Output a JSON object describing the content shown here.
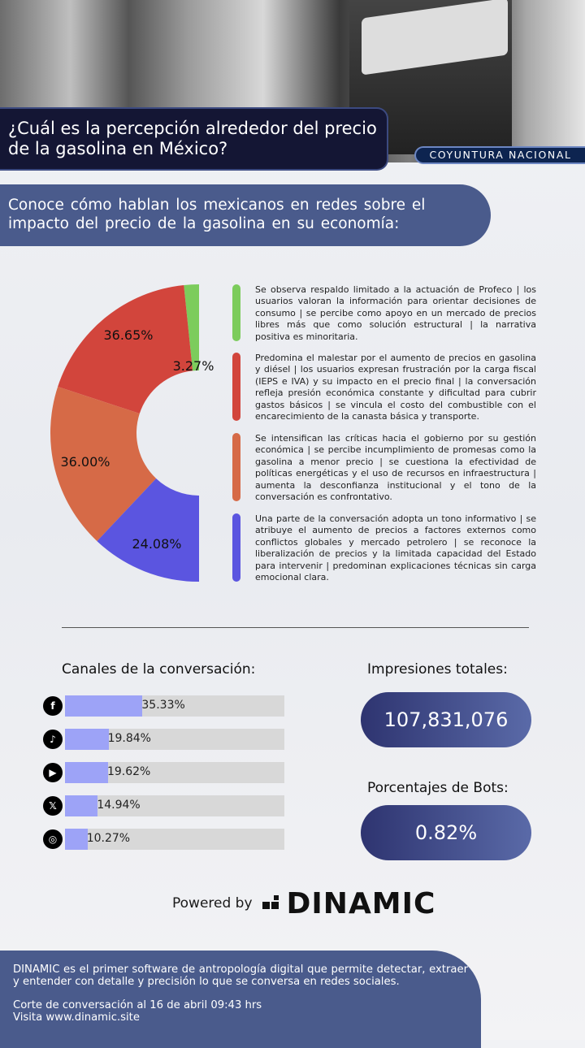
{
  "header": {
    "title": "¿Cuál es la percepción alrededor del precio de la gasolina en México?",
    "badge": "COYUNTURA NACIONAL",
    "subtitle": "Conoce cómo hablan los mexicanos en redes sobre el impacto del precio de la gasolina en su economía:"
  },
  "chart_data": {
    "type": "pie",
    "variant": "half-donut",
    "values": [
      3.27,
      36.65,
      36.0,
      24.08
    ],
    "labels": [
      "3.27%",
      "36.65%",
      "36.00%",
      "24.08%"
    ],
    "colors": [
      "#7ccc5c",
      "#d2453c",
      "#d66a47",
      "#5b55e0"
    ]
  },
  "narratives": [
    {
      "color": "#7ccc5c",
      "text": "Se observa respaldo limitado a la actuación de Profeco | los usuarios valoran la información para orientar decisiones de consumo | se percibe como apoyo en un mercado de precios libres más que como solución estructural | la narrativa positiva es minoritaria."
    },
    {
      "color": "#d2453c",
      "text": "Predomina el malestar por el aumento de precios en gasolina y diésel | los usuarios expresan frustración por la carga fiscal (IEPS e IVA) y su impacto en el precio final | la conversación refleja presión económica constante y dificultad para cubrir gastos básicos | se vincula el costo del combustible con el encarecimiento de la canasta básica y transporte."
    },
    {
      "color": "#d66a47",
      "text": "Se intensifican las críticas hacia el gobierno por su gestión económica | se percibe incumplimiento de promesas como la gasolina a menor precio | se cuestiona la efectividad de políticas energéticas y el uso de recursos en infraestructura | aumenta la desconfianza institucional y el tono de la conversación es confrontativo."
    },
    {
      "color": "#5b55e0",
      "text": "Una parte de la conversación adopta un tono informativo | se atribuye el aumento de precios a factores externos como conflictos globales y mercado petrolero | se reconoce la liberalización de precios y la limitada capacidad del Estado para intervenir | predominan explicaciones técnicas sin carga emocional clara."
    }
  ],
  "channels": {
    "title": "Canales de la conversación:",
    "items": [
      {
        "icon": "facebook-icon",
        "glyph": "f",
        "value": 35.33,
        "label": "35.33%"
      },
      {
        "icon": "tiktok-icon",
        "glyph": "♪",
        "value": 19.84,
        "label": "19.84%"
      },
      {
        "icon": "youtube-icon",
        "glyph": "▶",
        "value": 19.62,
        "label": "19.62%"
      },
      {
        "icon": "x-icon",
        "glyph": "𝕏",
        "value": 14.94,
        "label": "14.94%"
      },
      {
        "icon": "instagram-icon",
        "glyph": "◎",
        "value": 10.27,
        "label": "10.27%"
      }
    ]
  },
  "stats": {
    "impressions_title": "Impresiones totales:",
    "impressions": "107,831,076",
    "bots_title": "Porcentajes de Bots:",
    "bots": "0.82%"
  },
  "brand": {
    "powered_by": "Powered by",
    "name": "DINAMIC"
  },
  "footer": {
    "about": "DINAMIC es el primer software de antropología digital que permite detectar, extraer y entender con detalle y precisión lo que se conversa en redes sociales.",
    "cut": "Corte de conversación al 16 de abril 09:43 hrs",
    "visit": "Visita www.dinamic.site"
  }
}
